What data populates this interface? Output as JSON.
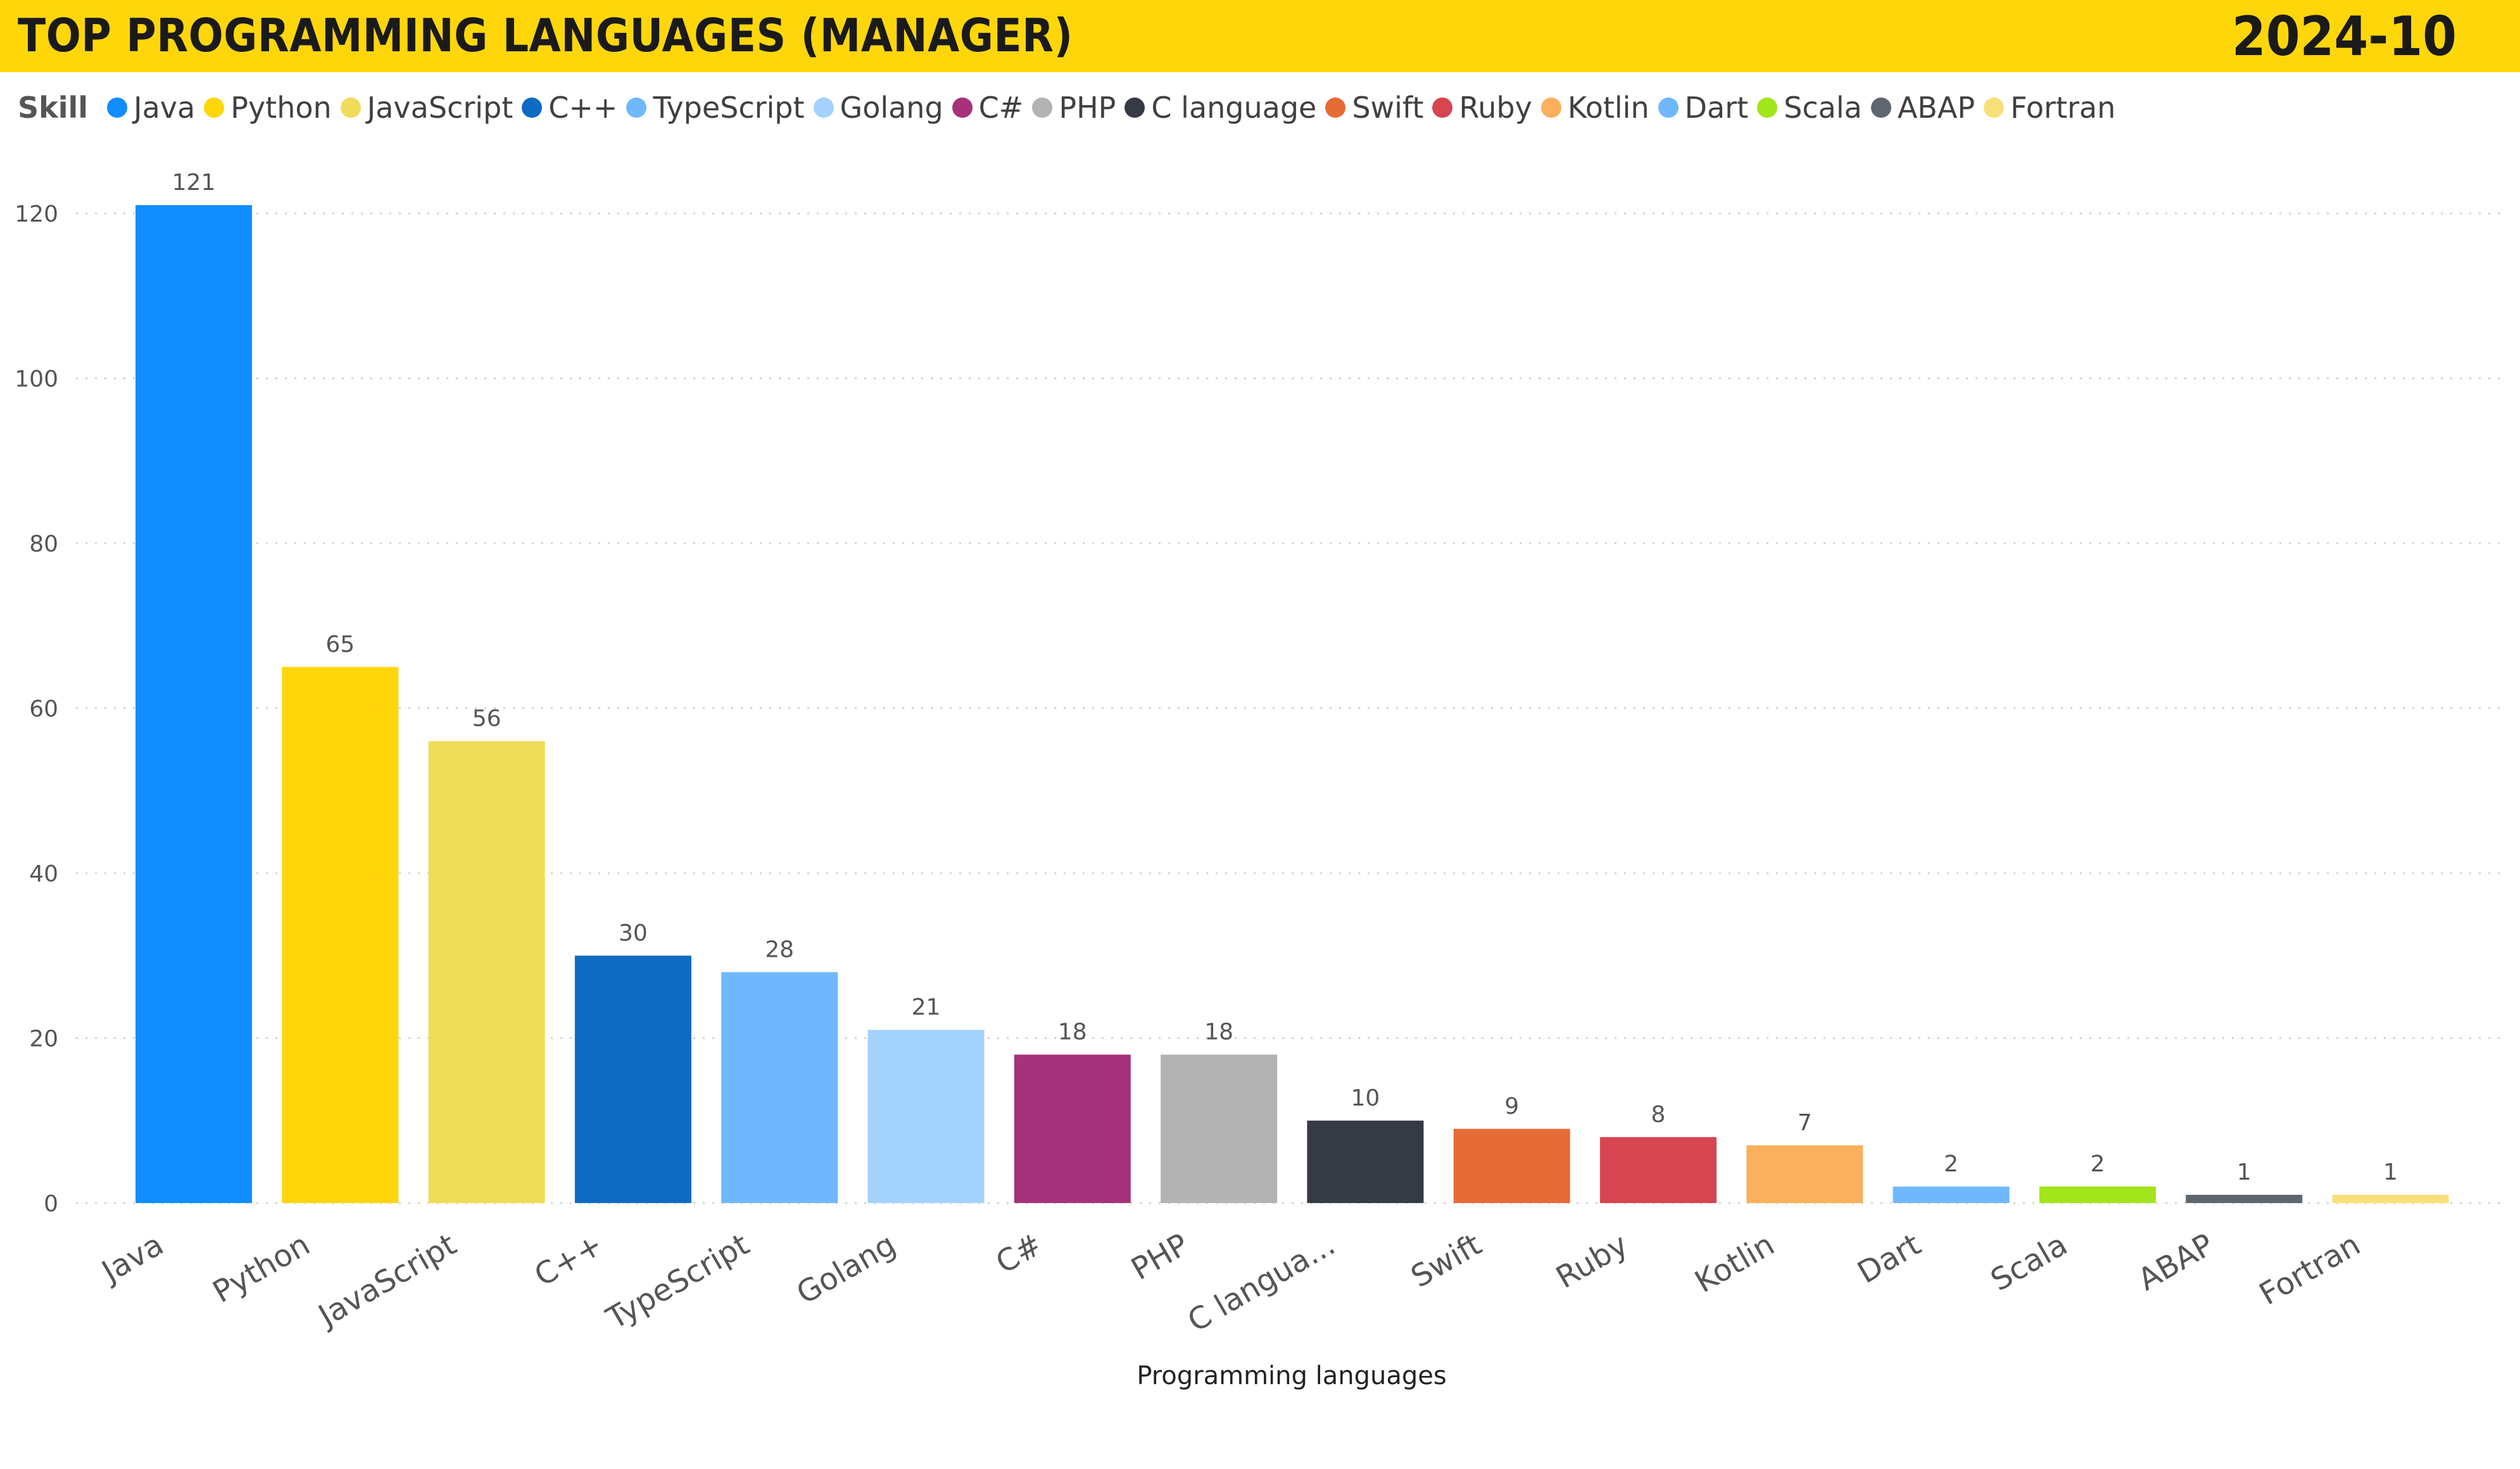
{
  "header": {
    "title": "TOP PROGRAMMING LANGUAGES (MANAGER)",
    "date": "2024-10"
  },
  "legend": {
    "title": "Skill",
    "items": [
      {
        "label": "Java",
        "color": "#118DFF"
      },
      {
        "label": "Python",
        "color": "#FFD60A"
      },
      {
        "label": "JavaScript",
        "color": "#EFDC58"
      },
      {
        "label": "C++",
        "color": "#0F6BC1"
      },
      {
        "label": "TypeScript",
        "color": "#6FB8FD"
      },
      {
        "label": "Golang",
        "color": "#A3D2FD"
      },
      {
        "label": "C#",
        "color": "#A5327A"
      },
      {
        "label": "PHP",
        "color": "#B3B3B3"
      },
      {
        "label": "C language",
        "color": "#363A45"
      },
      {
        "label": "Swift",
        "color": "#E66C37"
      },
      {
        "label": "Ruby",
        "color": "#D64550"
      },
      {
        "label": "Kotlin",
        "color": "#FAB05C"
      },
      {
        "label": "Dart",
        "color": "#6FB8FD"
      },
      {
        "label": "Scala",
        "color": "#A2E51A"
      },
      {
        "label": "ABAP",
        "color": "#5F6670"
      },
      {
        "label": "Fortran",
        "color": "#F7E07A"
      }
    ]
  },
  "chart_data": {
    "type": "bar",
    "title": "TOP PROGRAMMING LANGUAGES (MANAGER)",
    "xlabel": "Programming languages",
    "ylabel": "",
    "categories": [
      "Java",
      "Python",
      "JavaScript",
      "C++",
      "TypeScript",
      "Golang",
      "C#",
      "PHP",
      "C langua...",
      "Swift",
      "Ruby",
      "Kotlin",
      "Dart",
      "Scala",
      "ABAP",
      "Fortran"
    ],
    "values": [
      121,
      65,
      56,
      30,
      28,
      21,
      18,
      18,
      10,
      9,
      8,
      7,
      2,
      2,
      1,
      1
    ],
    "colors": [
      "#118DFF",
      "#FFD60A",
      "#EFDC58",
      "#0F6BC1",
      "#6FB8FD",
      "#A3D2FD",
      "#A5327A",
      "#B3B3B3",
      "#363A45",
      "#E66C37",
      "#D64550",
      "#FAB05C",
      "#6FB8FD",
      "#A2E51A",
      "#5F6670",
      "#F7E07A"
    ],
    "ylim": [
      0,
      120
    ],
    "yticks": [
      0,
      20,
      40,
      60,
      80,
      100,
      120
    ],
    "grid": true,
    "legend": "top"
  }
}
